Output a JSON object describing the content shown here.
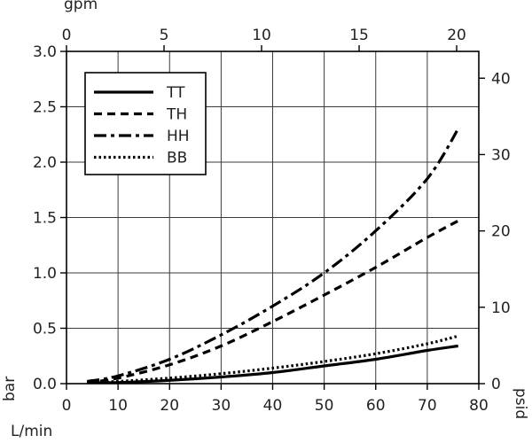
{
  "chart_data": {
    "type": "line",
    "title": "",
    "xlabel": "L/min",
    "x2label": "gpm",
    "ylabel": "bar",
    "y2label": "psid",
    "xlim": [
      0,
      80
    ],
    "ylim": [
      0,
      3.0
    ],
    "x2lim": [
      0,
      21.135
    ],
    "y2lim": [
      0,
      43.51
    ],
    "x_ticks": [
      0,
      10,
      20,
      30,
      40,
      50,
      60,
      70,
      80
    ],
    "x_tick_labels": [
      "0",
      "10",
      "20",
      "30",
      "40",
      "50",
      "60",
      "70",
      "80"
    ],
    "y_ticks": [
      0,
      0.5,
      1.0,
      1.5,
      2.0,
      2.5,
      3.0
    ],
    "y_tick_labels": [
      "0.0",
      "0.5",
      "1.0",
      "1.5",
      "2.0",
      "2.5",
      "3.0"
    ],
    "x2_ticks": [
      0,
      5,
      10,
      15,
      20
    ],
    "x2_tick_labels": [
      "0",
      "5",
      "10",
      "15",
      "20"
    ],
    "y2_ticks": [
      0,
      10,
      20,
      30,
      40
    ],
    "y2_tick_labels": [
      "0",
      "10",
      "20",
      "30",
      "40"
    ],
    "grid": true,
    "legend_position": "top-left",
    "series": [
      {
        "name": "TT",
        "dash": "solid",
        "x": [
          4,
          10,
          20,
          30,
          40,
          50,
          60,
          70,
          76
        ],
        "y": [
          0.01,
          0.01,
          0.03,
          0.06,
          0.1,
          0.16,
          0.22,
          0.3,
          0.34
        ]
      },
      {
        "name": "TH",
        "dash": "dashed",
        "x": [
          4,
          10,
          20,
          30,
          40,
          50,
          60,
          70,
          76
        ],
        "y": [
          0.01,
          0.05,
          0.17,
          0.34,
          0.56,
          0.8,
          1.05,
          1.32,
          1.47
        ]
      },
      {
        "name": "HH",
        "dash": "dashdot",
        "x": [
          4,
          10,
          20,
          30,
          40,
          50,
          60,
          70,
          76
        ],
        "y": [
          0.02,
          0.07,
          0.22,
          0.44,
          0.7,
          1.0,
          1.38,
          1.85,
          2.3
        ]
      },
      {
        "name": "BB",
        "dash": "dotted",
        "x": [
          4,
          10,
          20,
          30,
          40,
          50,
          60,
          70,
          76
        ],
        "y": [
          0.01,
          0.02,
          0.05,
          0.09,
          0.14,
          0.2,
          0.27,
          0.36,
          0.43
        ]
      }
    ]
  }
}
